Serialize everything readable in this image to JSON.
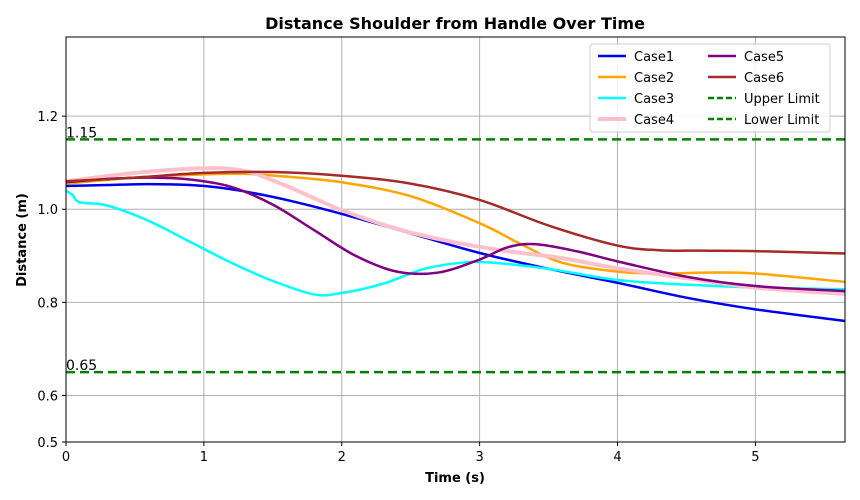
{
  "chart_data": {
    "type": "line",
    "title": "Distance Shoulder from Handle Over Time",
    "xlabel": "Time (s)",
    "ylabel": "Distance (m)",
    "xlim": [
      0,
      5.65
    ],
    "ylim": [
      0.5,
      1.37
    ],
    "xticks": [
      0,
      1,
      2,
      3,
      4,
      5
    ],
    "yticks": [
      0.5,
      0.6,
      0.8,
      1.0,
      1.2
    ],
    "ytick_labels": [
      "0.5",
      "0.6",
      "0.8",
      "1.0",
      "1.2"
    ],
    "grid": true,
    "legend_position": "top-right",
    "legend_columns": 2,
    "colors": {
      "Case1": "#0000ee",
      "Case2": "#ffa500",
      "Case3": "#00ffff",
      "Case4": "#ffc0cb",
      "Case5": "#800080",
      "Case6": "#a52a2a",
      "Upper Limit": "#008000",
      "Lower Limit": "#008000"
    },
    "series": [
      {
        "name": "Case1",
        "x": [
          0,
          0.3,
          0.6,
          0.9,
          1.1,
          1.3,
          1.6,
          2.0,
          2.5,
          3.0,
          3.5,
          4.0,
          4.5,
          5.0,
          5.65
        ],
        "y": [
          1.05,
          1.052,
          1.054,
          1.052,
          1.047,
          1.038,
          1.02,
          0.99,
          0.948,
          0.906,
          0.872,
          0.842,
          0.81,
          0.785,
          0.76
        ]
      },
      {
        "name": "Case2",
        "x": [
          0,
          0.5,
          1.0,
          1.3,
          1.6,
          2.0,
          2.5,
          3.0,
          3.3,
          3.6,
          4.0,
          4.3,
          4.7,
          5.0,
          5.65
        ],
        "y": [
          1.055,
          1.068,
          1.075,
          1.076,
          1.07,
          1.058,
          1.028,
          0.97,
          0.925,
          0.885,
          0.866,
          0.862,
          0.864,
          0.862,
          0.844
        ]
      },
      {
        "name": "Case3",
        "x": [
          0,
          0.05,
          0.1,
          0.3,
          0.6,
          0.9,
          1.2,
          1.5,
          1.8,
          2.0,
          2.3,
          2.6,
          2.9,
          3.1,
          3.5,
          4.0,
          4.5,
          5.0,
          5.65
        ],
        "y": [
          1.04,
          1.03,
          1.015,
          1.008,
          0.975,
          0.93,
          0.885,
          0.846,
          0.817,
          0.82,
          0.84,
          0.872,
          0.886,
          0.885,
          0.872,
          0.848,
          0.838,
          0.832,
          0.828
        ]
      },
      {
        "name": "Case4",
        "x": [
          0,
          0.5,
          1.0,
          1.3,
          1.6,
          2.0,
          2.4,
          2.8,
          3.2,
          3.6,
          4.0,
          4.5,
          5.0,
          5.65
        ],
        "y": [
          1.06,
          1.078,
          1.088,
          1.082,
          1.05,
          0.998,
          0.958,
          0.93,
          0.91,
          0.895,
          0.873,
          0.852,
          0.832,
          0.818
        ]
      },
      {
        "name": "Case5",
        "x": [
          0,
          0.3,
          0.6,
          0.9,
          1.2,
          1.5,
          1.8,
          2.1,
          2.4,
          2.7,
          3.0,
          3.2,
          3.4,
          3.7,
          4.0,
          4.5,
          5.0,
          5.65
        ],
        "y": [
          1.058,
          1.065,
          1.068,
          1.064,
          1.048,
          1.01,
          0.955,
          0.9,
          0.866,
          0.864,
          0.892,
          0.918,
          0.925,
          0.91,
          0.888,
          0.855,
          0.835,
          0.824
        ]
      },
      {
        "name": "Case6",
        "x": [
          0,
          0.5,
          1.0,
          1.5,
          2.0,
          2.5,
          3.0,
          3.5,
          4.0,
          4.3,
          4.6,
          5.0,
          5.65
        ],
        "y": [
          1.06,
          1.068,
          1.078,
          1.08,
          1.072,
          1.055,
          1.02,
          0.965,
          0.922,
          0.912,
          0.911,
          0.91,
          0.905
        ]
      },
      {
        "name": "Upper Limit",
        "x": [
          0,
          5.65
        ],
        "y": [
          1.15,
          1.15
        ]
      },
      {
        "name": "Lower Limit",
        "x": [
          0,
          5.65
        ],
        "y": [
          0.65,
          0.65
        ]
      }
    ],
    "annotations": [
      {
        "text": "1.15",
        "x": 0,
        "y": 1.15
      },
      {
        "text": "0.65",
        "x": 0,
        "y": 0.65
      }
    ]
  }
}
